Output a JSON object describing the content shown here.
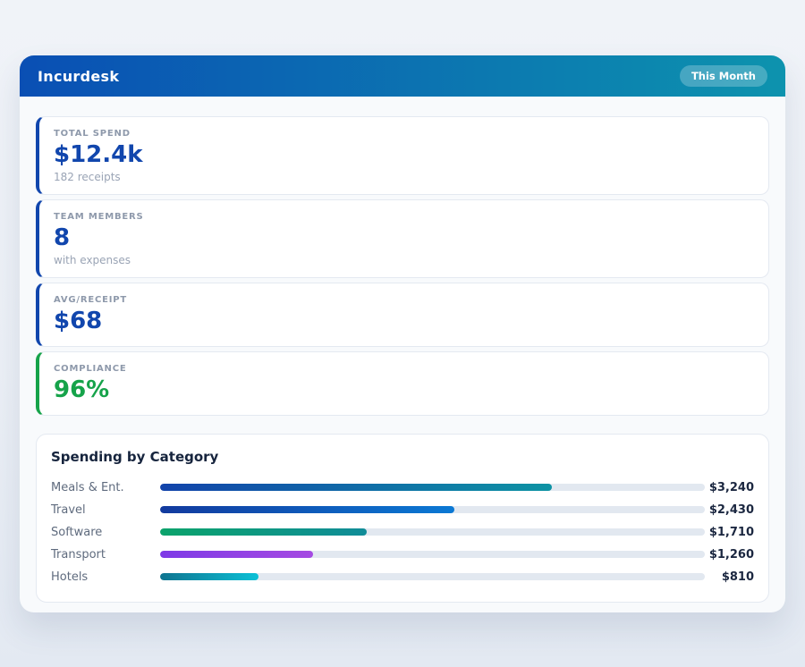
{
  "header": {
    "title": "Incurdesk",
    "badge": "This Month"
  },
  "theme": {
    "header_gradient": [
      "#0a4fb4",
      "#0d93ae"
    ],
    "accent_blue": "#1146ad",
    "accent_green": "#16a34a",
    "bar_track": "#e2e8f0",
    "panel_bg": "#f8fafc"
  },
  "stats": [
    {
      "label": "TOTAL SPEND",
      "value": "$12.4k",
      "sub": "182 receipts",
      "accent": "#1146ad",
      "value_color": "#1146ad"
    },
    {
      "label": "TEAM MEMBERS",
      "value": "8",
      "sub": "with expenses",
      "accent": "#1146ad",
      "value_color": "#1146ad"
    },
    {
      "label": "AVG/RECEIPT",
      "value": "$68",
      "sub": "",
      "accent": "#1146ad",
      "value_color": "#1146ad"
    },
    {
      "label": "COMPLIANCE",
      "value": "96%",
      "sub": "",
      "accent": "#16a34a",
      "value_color": "#16a34a"
    }
  ],
  "chart_data": {
    "type": "bar",
    "orientation": "horizontal",
    "title": "Spending by Category",
    "categories": [
      "Meals & Ent.",
      "Travel",
      "Software",
      "Transport",
      "Hotels"
    ],
    "values": [
      3240,
      2430,
      1710,
      1260,
      810
    ],
    "value_labels": [
      "$3,240",
      "$2,430",
      "$1,710",
      "$1,260",
      "$810"
    ],
    "xlim": [
      0,
      4500
    ],
    "grid": false,
    "legend": false,
    "bar_gradients": [
      [
        "#1243aa",
        "#0d93a4"
      ],
      [
        "#123a9e",
        "#0b79d4"
      ],
      [
        "#0ba36b",
        "#108c98"
      ],
      [
        "#7e3ae6",
        "#a54ae2"
      ],
      [
        "#0e7490",
        "#0cc0d6"
      ]
    ]
  }
}
